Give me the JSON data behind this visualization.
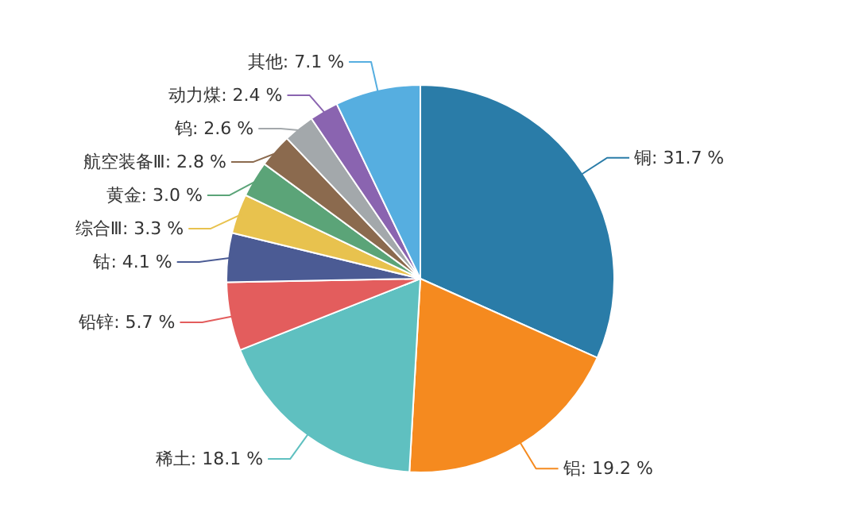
{
  "chart_data": {
    "type": "pie",
    "categories": [
      "铜",
      "铝",
      "稀土",
      "铅锌",
      "钴",
      "综合Ⅲ",
      "黄金",
      "航空装备Ⅲ",
      "钨",
      "动力煤",
      "其他"
    ],
    "values": [
      31.7,
      19.2,
      18.1,
      5.7,
      4.1,
      3.3,
      3.0,
      2.8,
      2.6,
      2.4,
      7.1
    ],
    "value_labels": [
      "31.7 %",
      "19.2 %",
      "18.1 %",
      "5.7 %",
      "4.1 %",
      "3.3 %",
      "3.0 %",
      "2.8 %",
      "2.6 %",
      "2.4 %",
      "7.1 %"
    ],
    "colors": [
      "#2a7ca8",
      "#f58a1f",
      "#5fc0c0",
      "#e35d5d",
      "#4b5b94",
      "#e8c24e",
      "#5ba478",
      "#8b6a4e",
      "#a3a8ab",
      "#8a64b0",
      "#56aee0"
    ]
  }
}
